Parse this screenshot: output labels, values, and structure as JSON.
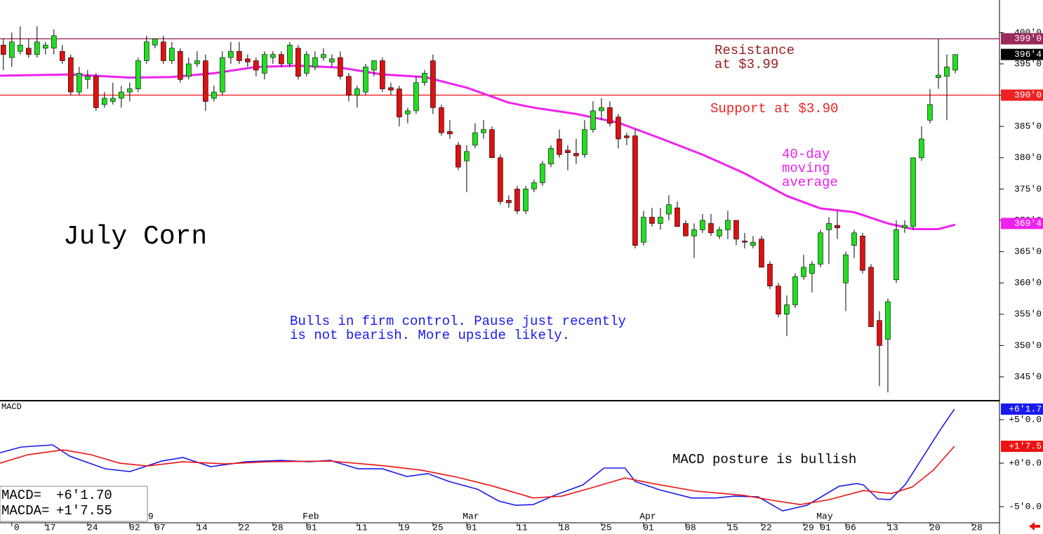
{
  "chart_data": [
    {
      "type": "candlestick",
      "title": "July Corn",
      "ylim": [
        341.3,
        405.2
      ],
      "yticks": [
        {
          "value": 345,
          "label": "345'0"
        },
        {
          "value": 350,
          "label": "350'0"
        },
        {
          "value": 355,
          "label": "355'0"
        },
        {
          "value": 360,
          "label": "360'0"
        },
        {
          "value": 365,
          "label": "365'0"
        },
        {
          "value": 370,
          "label": "370'0"
        },
        {
          "value": 375,
          "label": "375'0"
        },
        {
          "value": 380,
          "label": "380'0"
        },
        {
          "value": 385,
          "label": "385'0"
        },
        {
          "value": 390,
          "label": "390'0"
        },
        {
          "value": 395,
          "label": "395'0"
        },
        {
          "value": 400,
          "label": "400'0"
        }
      ],
      "xlim": [
        -0.4,
        118.25
      ],
      "up_color": "#22dd22",
      "down_color": "#dd1111",
      "candles": {
        "open": [
          398,
          396,
          397,
          397.5,
          396.5,
          397.5,
          397.5,
          397,
          396,
          390.5,
          392.5,
          393,
          388.5,
          389,
          389.5,
          390.5,
          391,
          395.5,
          398,
          398.5,
          395.5,
          397,
          393,
          395,
          395.5,
          389.5,
          390.5,
          396,
          397,
          395.8,
          395.5,
          393.5,
          396,
          396.5,
          395,
          397.5,
          393.5,
          394.5,
          396,
          395.3,
          396,
          393,
          390,
          390.5,
          394,
          395.5,
          391.2,
          391,
          387,
          387.5,
          392,
          395.5,
          388,
          384.2,
          382,
          379.5,
          382,
          384,
          384.5,
          380,
          373.2,
          375,
          371.5,
          375,
          376,
          379,
          383,
          381.2,
          380.7,
          380.5,
          384.5,
          387.5,
          388,
          386.5,
          383.5,
          383.5,
          366.5,
          370.5,
          369.5,
          371,
          372,
          369.5,
          367.5,
          368.5,
          369.5,
          367.5,
          368.5,
          370,
          366.7,
          366,
          367,
          363,
          359.5,
          355,
          356.5,
          361,
          361.5,
          363,
          368.5,
          369.2,
          360,
          366,
          367.5,
          362.5,
          354,
          351,
          360.5,
          368.8,
          369,
          380,
          386,
          392.8,
          393,
          394
        ],
        "high": [
          399,
          400,
          401,
          399,
          401,
          398.5,
          400.5,
          398,
          396.5,
          394.5,
          394,
          393.5,
          390.5,
          392,
          391.5,
          392,
          396,
          399.5,
          399,
          399.5,
          398.5,
          397.5,
          396,
          397,
          396.5,
          391.5,
          397,
          398.5,
          398.5,
          396.5,
          396,
          397,
          397,
          397,
          398.5,
          398,
          397,
          397,
          397.5,
          396.5,
          397,
          393.5,
          391.5,
          395,
          395.5,
          396,
          392,
          391.5,
          388,
          393,
          394,
          396.5,
          388.5,
          386,
          382.5,
          382,
          385.5,
          386,
          385,
          380.5,
          374,
          375.5,
          375.5,
          376.5,
          379.5,
          382,
          384.5,
          382,
          383,
          386,
          389,
          389.5,
          389,
          387,
          384,
          384.5,
          371.5,
          372,
          372,
          374,
          373,
          370,
          369.5,
          371,
          371,
          369,
          371.5,
          370,
          368,
          367.5,
          367.5,
          363.5,
          360,
          358,
          361.5,
          364.5,
          363.5,
          368.5,
          370.5,
          371.5,
          365,
          368.5,
          368,
          363,
          355.5,
          357.5,
          370,
          370,
          380,
          385,
          391,
          399,
          396.5,
          396.5
        ],
        "low": [
          394,
          394.5,
          396.5,
          396,
          396,
          396.5,
          396.5,
          395,
          390,
          390,
          391,
          387.5,
          388,
          388.5,
          388,
          389,
          390.5,
          395,
          397.5,
          395,
          395,
          392,
          392.5,
          394.5,
          387.5,
          389,
          390,
          395,
          395,
          394.5,
          393,
          392.5,
          395,
          394.5,
          394.5,
          392.5,
          393,
          394,
          395.5,
          394.5,
          392.5,
          389,
          388,
          390,
          393,
          390.5,
          390,
          385,
          385.5,
          387,
          391.5,
          387,
          383.5,
          383,
          378,
          374.5,
          381.5,
          383,
          380,
          372.5,
          372,
          371,
          371,
          374.5,
          375.5,
          378.5,
          380,
          378,
          379,
          380,
          384,
          386,
          385,
          381.5,
          382,
          365.5,
          366,
          369,
          368.5,
          370,
          369,
          367.5,
          364,
          368,
          367.5,
          367,
          367,
          366,
          365.5,
          365.5,
          362.5,
          359,
          354.5,
          351.5,
          356,
          360.5,
          358.5,
          362.5,
          363,
          367,
          355.5,
          364,
          361.5,
          353,
          343.5,
          342.5,
          360,
          368,
          368.5,
          379.5,
          385.5,
          391,
          386,
          393.5
        ],
        "close": [
          396.5,
          398.5,
          398,
          396.5,
          398.5,
          398,
          399.5,
          395.5,
          390.5,
          393.5,
          393,
          388,
          389.5,
          389.5,
          390.5,
          391,
          395.5,
          398.5,
          399,
          395.5,
          397.5,
          392.5,
          395,
          395.5,
          389,
          390.5,
          396,
          397,
          395.5,
          395.3,
          394,
          396.5,
          396.5,
          395,
          398,
          393,
          396.5,
          396,
          396.5,
          395.8,
          393,
          390,
          391,
          394.5,
          395.5,
          391,
          390.8,
          386.5,
          387.5,
          392,
          393.5,
          388,
          384,
          383.8,
          378.5,
          381,
          384,
          384.5,
          380,
          373,
          372.8,
          371.5,
          375,
          376,
          379,
          381.5,
          380.5,
          380.8,
          380.3,
          384.5,
          387.5,
          388,
          385.5,
          383,
          383.2,
          366,
          370.5,
          369.5,
          370.5,
          372.5,
          369,
          367.5,
          368.5,
          370,
          368,
          368.5,
          370,
          367,
          366.5,
          366.5,
          362.5,
          359.5,
          355,
          356.5,
          361,
          362.5,
          363,
          368,
          369.5,
          368.8,
          364.5,
          368,
          362,
          353,
          350,
          357,
          368.5,
          369.2,
          380,
          383,
          388.5,
          393.2,
          394.5,
          396.5
        ]
      },
      "moving_average": {
        "color": "#ee22ee",
        "x": [
          -0.4,
          8,
          15,
          20,
          25,
          30,
          35,
          40,
          45,
          50,
          55,
          60,
          63,
          68,
          73,
          78,
          83,
          88,
          93,
          97,
          101,
          105,
          108,
          111,
          113
        ],
        "values": [
          393.1,
          393.3,
          392.8,
          392.9,
          393.5,
          394.5,
          394.7,
          394.4,
          393.3,
          392.9,
          391.2,
          388.8,
          388.0,
          387.0,
          385.6,
          383.1,
          380.5,
          377.5,
          373.9,
          371.9,
          371.3,
          369.5,
          368.6,
          368.6,
          369.3
        ],
        "tag": {
          "value": 369.5,
          "label": "369'4"
        }
      },
      "levels": [
        {
          "value": 399,
          "label": "399'0",
          "color": "#9a2a5c"
        },
        {
          "value": 390,
          "label": "390'0",
          "color": "#ee2222"
        }
      ],
      "last": {
        "value": 396.5,
        "label": "396'4"
      },
      "annotations": [
        {
          "lines": [
            "Resistance",
            "at $3.99"
          ],
          "color": "#9b1c1c"
        },
        {
          "lines": [
            "Support at $3.90"
          ],
          "color": "#ee2222"
        },
        {
          "lines": [
            "40-day",
            "moving",
            "average"
          ],
          "color": "#ee22ee"
        },
        {
          "lines": [
            "Bulls in firm control. Pause just recently",
            "is not bearish. More upside likely."
          ],
          "color": "#1a1aee"
        }
      ]
    },
    {
      "type": "line",
      "title": "MACD",
      "ylim": [
        -6.85,
        7.1
      ],
      "yticks": [
        {
          "value": 5,
          "label": "+5'0.0"
        },
        {
          "value": 0,
          "label": "+0'0.0"
        },
        {
          "value": -5,
          "label": "-5'0.0"
        }
      ],
      "xlim": [
        -0.4,
        118.25
      ],
      "xticks": [
        {
          "value": 1,
          "label": "0"
        },
        {
          "value": 5,
          "label": "17"
        },
        {
          "value": 10,
          "label": "24"
        },
        {
          "value": 15,
          "label": "02"
        },
        {
          "value": 18,
          "label": "07"
        },
        {
          "value": 23,
          "label": "14"
        },
        {
          "value": 28,
          "label": "22"
        },
        {
          "value": 32,
          "label": "28"
        },
        {
          "value": 36,
          "label": "01"
        },
        {
          "value": 42,
          "label": "11"
        },
        {
          "value": 47,
          "label": "19"
        },
        {
          "value": 51,
          "label": "25"
        },
        {
          "value": 55,
          "label": "01"
        },
        {
          "value": 61,
          "label": "11"
        },
        {
          "value": 66,
          "label": "18"
        },
        {
          "value": 71,
          "label": "25"
        },
        {
          "value": 76,
          "label": "01"
        },
        {
          "value": 81,
          "label": "08"
        },
        {
          "value": 86,
          "label": "15"
        },
        {
          "value": 90,
          "label": "22"
        },
        {
          "value": 95,
          "label": "29"
        },
        {
          "value": 97,
          "label": "01"
        },
        {
          "value": 100,
          "label": "06"
        },
        {
          "value": 105,
          "label": "13"
        },
        {
          "value": 110,
          "label": "20"
        },
        {
          "value": 115,
          "label": "28"
        }
      ],
      "month_ticks": [
        {
          "value": 17,
          "label": "9"
        },
        {
          "value": 36,
          "label": "Feb"
        },
        {
          "value": 55,
          "label": "Mar"
        },
        {
          "value": 76,
          "label": "Apr"
        },
        {
          "value": 97,
          "label": "May"
        }
      ],
      "series": [
        {
          "name": "MACD",
          "color": "#1a1aee",
          "x": [
            -0.4,
            2.1,
            5.85,
            7.9,
            12.1,
            15,
            18.8,
            21.3,
            24.6,
            28.8,
            32.9,
            36.3,
            38.8,
            42.1,
            45,
            47.9,
            50.4,
            52.9,
            56.3,
            58.8,
            60.8,
            62.9,
            65.4,
            68.8,
            71.3,
            73.8,
            75,
            77.9,
            81.7,
            84.6,
            86.7,
            89.6,
            92.5,
            95.4,
            99.2,
            101.3,
            102.1,
            103.8,
            105.3,
            107.1,
            108.8,
            111.3,
            112.9
          ],
          "values": [
            1.2,
            1.85,
            2.1,
            0.8,
            -0.65,
            -0.97,
            0.24,
            0.65,
            -0.4,
            0.16,
            0.32,
            0.16,
            0.32,
            -0.65,
            -0.65,
            -1.53,
            -1.2,
            -2.1,
            -3.0,
            -4.35,
            -4.84,
            -4.76,
            -3.7,
            -2.5,
            -0.56,
            -0.56,
            -2.1,
            -3.06,
            -4.0,
            -4.0,
            -3.79,
            -3.87,
            -5.48,
            -4.84,
            -2.66,
            -2.34,
            -2.5,
            -4.11,
            -4.19,
            -2.42,
            0.16,
            3.95,
            6.21
          ],
          "tag": {
            "value": 6.2125,
            "label": "+6'1.7"
          },
          "readout": "+6'1.70",
          "readout_name": "MACD="
        },
        {
          "name": "MACDA",
          "color": "#ee1111",
          "x": [
            -0.4,
            2.9,
            7.1,
            10.4,
            13.8,
            17.1,
            21.3,
            26.3,
            31.3,
            38.8,
            44.6,
            49.6,
            53.8,
            57.9,
            62.9,
            66.3,
            69.6,
            73.8,
            77.1,
            82.1,
            87.9,
            91.3,
            94.6,
            98,
            102.1,
            105.4,
            107.9,
            110.4,
            112.9
          ],
          "values": [
            0,
            0.97,
            1.53,
            0.97,
            0,
            -0.32,
            0.16,
            -0.08,
            0.16,
            0.24,
            -0.24,
            -0.8,
            -1.6,
            -2.58,
            -4.0,
            -3.79,
            -2.9,
            -1.7,
            -2.34,
            -3.2,
            -3.7,
            -4.27,
            -4.76,
            -4.2,
            -3.15,
            -3.5,
            -2.74,
            -0.8,
            1.94
          ],
          "tag": {
            "value": 1.9375,
            "label": "+1'7.5"
          },
          "readout": "+1'7.55",
          "readout_name": "MACDA="
        }
      ],
      "annotation": "MACD posture is bullish"
    }
  ]
}
